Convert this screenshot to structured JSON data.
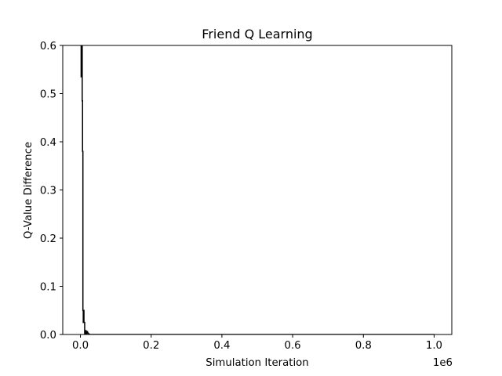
{
  "chart_data": {
    "type": "line",
    "title": "Friend Q Learning",
    "xlabel": "Simulation Iteration",
    "ylabel": "Q-Value Difference",
    "x_offset_label": "1e6",
    "xlim": [
      -50000,
      1050000
    ],
    "ylim": [
      0,
      0.6
    ],
    "x_ticks": [
      0,
      200000,
      400000,
      600000,
      800000,
      1000000
    ],
    "x_tick_labels": [
      "0.0",
      "0.2",
      "0.4",
      "0.6",
      "0.8",
      "1.0"
    ],
    "y_ticks": [
      0,
      0.1,
      0.2,
      0.3,
      0.4,
      0.5,
      0.6
    ],
    "y_tick_labels": [
      "0.0",
      "0.1",
      "0.2",
      "0.3",
      "0.4",
      "0.5",
      "0.6"
    ],
    "grid": false,
    "line_color": "#000000",
    "series": [
      {
        "x": [
          0,
          2000,
          2000,
          4000,
          4000,
          5000,
          5000,
          6000,
          6000,
          7000,
          7000,
          8000,
          8000,
          9000,
          9000,
          10000,
          10000,
          12000,
          12000,
          14000,
          14000,
          16000,
          16000,
          18000,
          18000,
          20000,
          20000,
          22000,
          22000,
          25000,
          25000,
          30000,
          1000000
        ],
        "y": [
          0.6,
          0.6,
          0.535,
          0.535,
          0.6,
          0.6,
          0.485,
          0.485,
          0.38,
          0.38,
          0.05,
          0.05,
          0.025,
          0.025,
          0.05,
          0.05,
          0.025,
          0.025,
          0.0,
          0.0,
          0.008,
          0.008,
          0.0,
          0.0,
          0.006,
          0.006,
          0.003,
          0.003,
          0.001,
          0.001,
          0.0,
          0.0,
          0.0
        ]
      }
    ]
  }
}
